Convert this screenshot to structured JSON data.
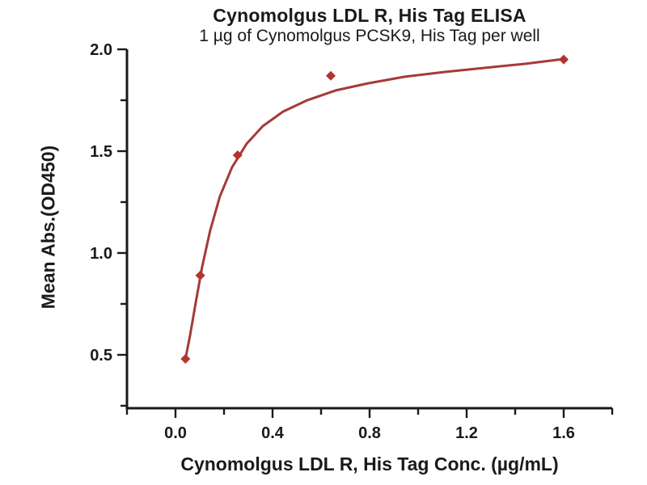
{
  "chart": {
    "title": "Cynomolgus LDL R, His Tag ELISA",
    "subtitle": "1 µg of Cynomolgus PCSK9, His Tag per well",
    "xlabel": "Cynomolgus LDL R, His Tag Conc. (µg/mL)",
    "ylabel": "Mean Abs.(OD450)"
  },
  "chart_data": {
    "type": "scatter",
    "title": "Cynomolgus LDL R, His Tag ELISA",
    "subtitle": "1 µg of Cynomolgus PCSK9, His Tag per well",
    "xlabel": "Cynomolgus LDL R, His Tag Conc. (µg/mL)",
    "ylabel": "Mean Abs.(OD450)",
    "legend": "none",
    "grid": false,
    "xlim": [
      -0.2,
      1.8
    ],
    "ylim": [
      0.238,
      2.0
    ],
    "x_major_ticks": [
      0.0,
      0.4,
      0.8,
      1.2,
      1.6
    ],
    "x_major_labels": [
      "0.0",
      "0.4",
      "0.8",
      "1.2",
      "1.6"
    ],
    "x_minor_ticks": [
      -0.2,
      0.2,
      0.6,
      1.0,
      1.4,
      1.8
    ],
    "y_major_ticks": [
      0.5,
      1.0,
      1.5,
      2.0
    ],
    "y_major_labels": [
      "0.5",
      "1.0",
      "1.5",
      "2.0"
    ],
    "y_minor_ticks": [
      0.25,
      0.75,
      1.25,
      1.75
    ],
    "points": {
      "x": [
        0.041,
        0.102,
        0.256,
        0.64,
        1.6
      ],
      "y": [
        0.48,
        0.89,
        1.48,
        1.87,
        1.95
      ]
    },
    "fit_curve": [
      [
        0.04,
        0.473
      ],
      [
        0.05,
        0.535
      ],
      [
        0.06,
        0.595
      ],
      [
        0.083,
        0.754
      ],
      [
        0.11,
        0.933
      ],
      [
        0.143,
        1.111
      ],
      [
        0.183,
        1.278
      ],
      [
        0.233,
        1.421
      ],
      [
        0.293,
        1.536
      ],
      [
        0.36,
        1.623
      ],
      [
        0.443,
        1.694
      ],
      [
        0.543,
        1.75
      ],
      [
        0.66,
        1.798
      ],
      [
        0.793,
        1.833
      ],
      [
        0.943,
        1.865
      ],
      [
        1.11,
        1.889
      ],
      [
        1.277,
        1.909
      ],
      [
        1.443,
        1.929
      ],
      [
        1.597,
        1.952
      ]
    ],
    "colors": {
      "curve": "#A33B39",
      "marker": "#B5332F",
      "axis": "#1A1A1A",
      "text": "#1A1A1A"
    }
  }
}
